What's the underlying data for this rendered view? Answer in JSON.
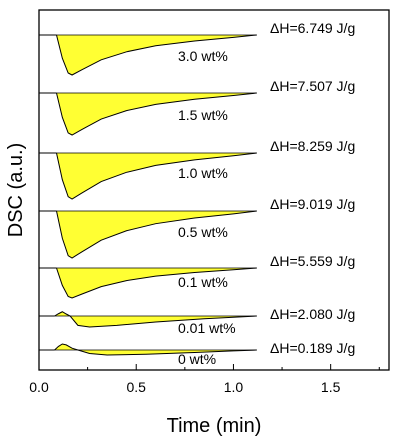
{
  "chart_data": {
    "type": "area",
    "title": "",
    "xlabel": "Time (min)",
    "ylabel": "DSC (a.u.)",
    "xlim": [
      0.0,
      1.8
    ],
    "xticks": [
      "0.0",
      "0.5",
      "1.0",
      "1.5"
    ],
    "xtick_values": [
      0.0,
      0.5,
      1.0,
      1.5
    ],
    "fill_color": "#ffff33",
    "line_color": "#000000",
    "series": [
      {
        "name": "3.0 wt%",
        "enthalpy": "ΔH=6.749 J/g",
        "curve": [
          [
            0.09,
            0.0
          ],
          [
            0.12,
            -0.58
          ],
          [
            0.15,
            -0.95
          ],
          [
            0.17,
            -1.0
          ],
          [
            0.22,
            -0.87
          ],
          [
            0.32,
            -0.62
          ],
          [
            0.45,
            -0.42
          ],
          [
            0.6,
            -0.27
          ],
          [
            0.8,
            -0.15
          ],
          [
            1.0,
            -0.06
          ],
          [
            1.12,
            0.0
          ]
        ]
      },
      {
        "name": "1.5 wt%",
        "enthalpy": "ΔH=7.507 J/g",
        "curve": [
          [
            0.09,
            0.0
          ],
          [
            0.12,
            -0.58
          ],
          [
            0.15,
            -0.95
          ],
          [
            0.17,
            -1.0
          ],
          [
            0.22,
            -0.87
          ],
          [
            0.32,
            -0.62
          ],
          [
            0.45,
            -0.42
          ],
          [
            0.6,
            -0.27
          ],
          [
            0.8,
            -0.15
          ],
          [
            1.0,
            -0.06
          ],
          [
            1.12,
            0.0
          ]
        ]
      },
      {
        "name": "1.0 wt%",
        "enthalpy": "ΔH=8.259 J/g",
        "curve": [
          [
            0.09,
            0.0
          ],
          [
            0.12,
            -0.58
          ],
          [
            0.15,
            -0.95
          ],
          [
            0.17,
            -1.0
          ],
          [
            0.22,
            -0.87
          ],
          [
            0.32,
            -0.62
          ],
          [
            0.45,
            -0.42
          ],
          [
            0.6,
            -0.27
          ],
          [
            0.8,
            -0.15
          ],
          [
            1.0,
            -0.06
          ],
          [
            1.12,
            0.0
          ]
        ]
      },
      {
        "name": "0.5 wt%",
        "enthalpy": "ΔH=9.019 J/g",
        "curve": [
          [
            0.09,
            0.0
          ],
          [
            0.12,
            -0.58
          ],
          [
            0.15,
            -0.95
          ],
          [
            0.17,
            -1.0
          ],
          [
            0.22,
            -0.87
          ],
          [
            0.32,
            -0.62
          ],
          [
            0.45,
            -0.42
          ],
          [
            0.6,
            -0.27
          ],
          [
            0.8,
            -0.15
          ],
          [
            1.0,
            -0.06
          ],
          [
            1.12,
            0.0
          ]
        ]
      },
      {
        "name": "0.1 wt%",
        "enthalpy": "ΔH=5.559 J/g",
        "curve": [
          [
            0.09,
            0.0
          ],
          [
            0.12,
            -0.58
          ],
          [
            0.15,
            -0.95
          ],
          [
            0.17,
            -1.0
          ],
          [
            0.22,
            -0.87
          ],
          [
            0.32,
            -0.62
          ],
          [
            0.45,
            -0.42
          ],
          [
            0.6,
            -0.27
          ],
          [
            0.8,
            -0.15
          ],
          [
            1.0,
            -0.06
          ],
          [
            1.12,
            0.0
          ]
        ]
      },
      {
        "name": "0.01 wt%",
        "enthalpy": "ΔH=2.080 J/g",
        "curve": [
          [
            0.08,
            0.0
          ],
          [
            0.1,
            0.45
          ],
          [
            0.12,
            0.85
          ],
          [
            0.14,
            0.4
          ],
          [
            0.16,
            0.0
          ],
          [
            0.2,
            -0.85
          ],
          [
            0.26,
            -1.0
          ],
          [
            0.4,
            -0.85
          ],
          [
            0.6,
            -0.55
          ],
          [
            0.85,
            -0.25
          ],
          [
            1.05,
            -0.07
          ],
          [
            1.12,
            0.0
          ]
        ]
      },
      {
        "name": "0 wt%",
        "enthalpy": "ΔH=0.189 J/g",
        "curve": [
          [
            0.08,
            0.0
          ],
          [
            0.1,
            0.6
          ],
          [
            0.12,
            1.0
          ],
          [
            0.14,
            0.85
          ],
          [
            0.17,
            0.3
          ],
          [
            0.2,
            0.0
          ],
          [
            0.26,
            -0.7
          ],
          [
            0.35,
            -1.0
          ],
          [
            0.55,
            -0.85
          ],
          [
            0.8,
            -0.5
          ],
          [
            1.0,
            -0.18
          ],
          [
            1.12,
            0.0
          ]
        ]
      }
    ]
  }
}
